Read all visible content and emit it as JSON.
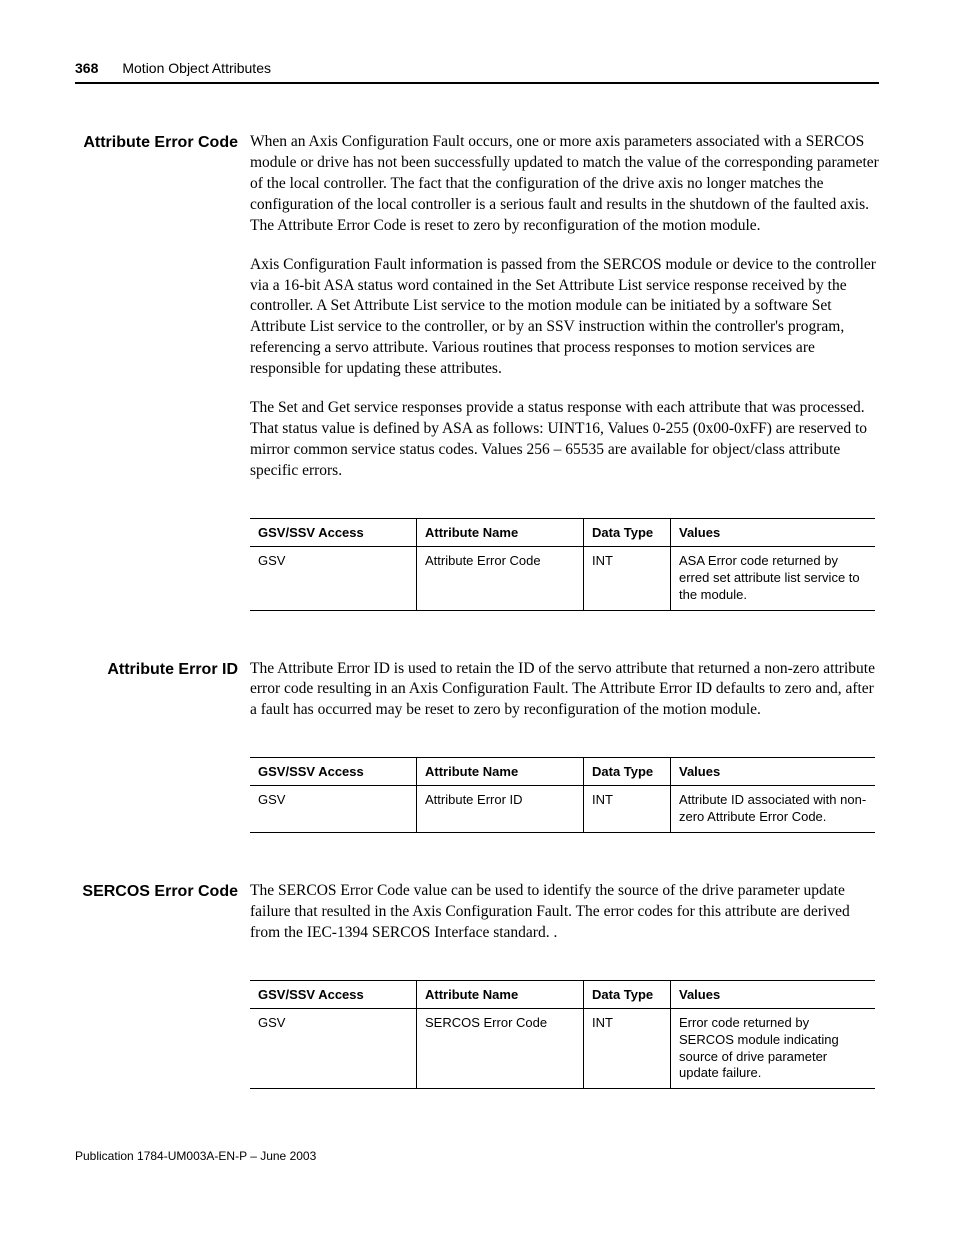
{
  "header": {
    "page_number": "368",
    "title": "Motion Object Attributes"
  },
  "sections": {
    "aec": {
      "heading": "Attribute Error Code",
      "p1": "When an Axis Configuration Fault occurs, one or more axis parameters associated with a SERCOS module or drive has not been successfully updated to match the value of the corresponding parameter of the local controller. The fact that the configuration of the drive axis no longer matches the configuration of the local controller is a serious fault and results in the shutdown of the faulted axis. The Attribute Error Code is reset to zero by reconfiguration of the motion module.",
      "p2": "Axis Configuration Fault information is passed from the SERCOS module or device to the controller via a 16-bit ASA status word contained in the Set Attribute List service response received by the controller. A Set Attribute List service to the motion module can be initiated by a software Set Attribute List service to the controller, or by an SSV instruction within the controller's program, referencing a servo attribute. Various routines that process responses to motion services are responsible for updating these attributes.",
      "p3": "The Set and Get service responses provide a status response with each attribute that was processed. That status value is defined by ASA as follows: UINT16, Values 0-255 (0x00-0xFF) are reserved to mirror common service status codes. Values 256 – 65535 are available for object/class attribute specific errors."
    },
    "aei": {
      "heading": "Attribute Error ID",
      "p1": "The Attribute Error ID is used to retain the ID of the servo attribute that returned a non-zero attribute error code resulting in an Axis Configuration Fault. The Attribute Error ID defaults to zero and, after a fault has occurred may be reset to zero by reconfiguration of the motion module."
    },
    "sec": {
      "heading": "SERCOS Error Code",
      "p1": "The SERCOS Error Code value can be used to identify the source of the drive parameter update failure that resulted in the Axis Configuration Fault. The error codes for this attribute are derived from the IEC-1394 SERCOS Interface standard. ."
    }
  },
  "table_headers": {
    "access": "GSV/SSV Access",
    "name": "Attribute Name",
    "type": "Data Type",
    "values": "Values"
  },
  "tables": {
    "aec": {
      "access": "GSV",
      "name": "Attribute Error Code",
      "type": "INT",
      "values": "ASA Error code returned by erred set attribute list service to the module."
    },
    "aei": {
      "access": "GSV",
      "name": "Attribute Error ID",
      "type": "INT",
      "values": "Attribute ID associated with non-zero Attribute Error Code."
    },
    "sec": {
      "access": "GSV",
      "name": "SERCOS Error Code",
      "type": "INT",
      "values": "Error code returned by SERCOS module indicating source of drive parameter update failure."
    }
  },
  "footer": "Publication 1784-UM003A-EN-P – June 2003"
}
